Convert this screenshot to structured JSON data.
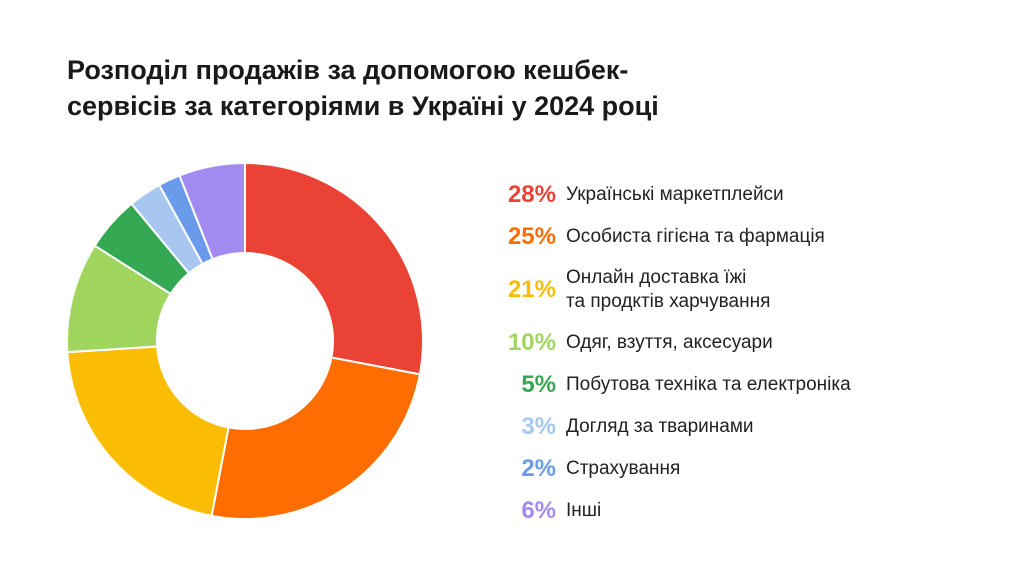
{
  "chart_data": {
    "type": "pie",
    "title": "Розподіл продажів за допомогою кешбек-сервісів за категоріями в Україні у 2024 році",
    "title_lines": [
      "Розподіл продажів за допомогою кешбек-",
      "сервісів за категоріями в Україні у 2024 році"
    ],
    "donut": true,
    "unit": "%",
    "legend_position": "right",
    "slices": [
      {
        "label": "Українські маркетплейси",
        "label_lines": [
          "Українські маркетплейси"
        ],
        "value": 28,
        "value_label": "28%",
        "color": "#EA4335"
      },
      {
        "label": "Особиста гігієна та фармація",
        "label_lines": [
          "Особиста гігієна та фармація"
        ],
        "value": 25,
        "value_label": "25%",
        "color": "#FF6D01"
      },
      {
        "label": "Онлайн доставка їжі та продктів харчування",
        "label_lines": [
          "Онлайн доставка їжі",
          "та продктів харчування"
        ],
        "value": 21,
        "value_label": "21%",
        "color": "#FBBC04"
      },
      {
        "label": "Одяг, взуття, аксесуари",
        "label_lines": [
          "Одяг, взуття, аксесуари"
        ],
        "value": 10,
        "value_label": "10%",
        "color": "#A1D65E"
      },
      {
        "label": "Побутова техніка та електроніка",
        "label_lines": [
          "Побутова техніка та електроніка"
        ],
        "value": 5,
        "value_label": "5%",
        "color": "#34A853"
      },
      {
        "label": "Догляд за тваринами",
        "label_lines": [
          "Догляд за тваринами"
        ],
        "value": 3,
        "value_label": "3%",
        "color": "#A8C7F0"
      },
      {
        "label": "Страхування",
        "label_lines": [
          "Страхування"
        ],
        "value": 2,
        "value_label": "2%",
        "color": "#6A9BEA"
      },
      {
        "label": "Інші",
        "label_lines": [
          "Інші"
        ],
        "value": 6,
        "value_label": "6%",
        "color": "#A28BF0"
      }
    ]
  }
}
